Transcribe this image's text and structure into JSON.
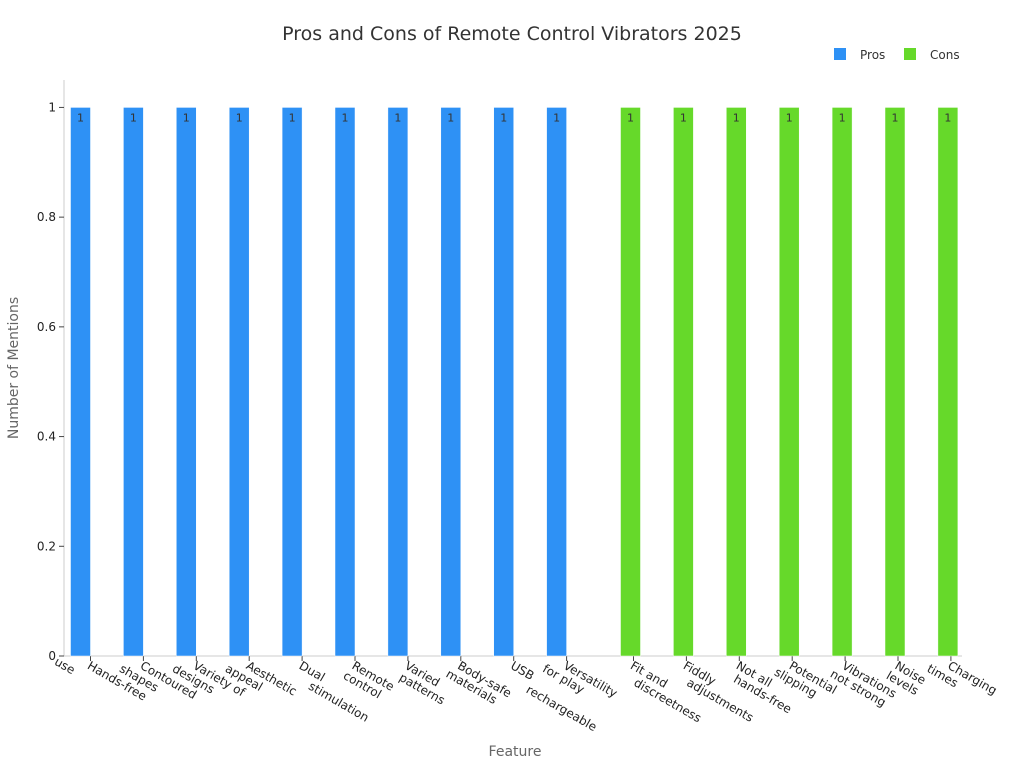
{
  "chart_data": {
    "type": "bar",
    "title": "Pros and Cons of Remote Control Vibrators 2025",
    "xlabel": "Feature",
    "ylabel": "Number of Mentions",
    "ylim": [
      0,
      1.05
    ],
    "yticks": [
      "0",
      "0.2",
      "0.4",
      "0.6",
      "0.8",
      "1"
    ],
    "grid": false,
    "legend_position": "top-right",
    "categories": [
      [
        "Hands-free",
        "use"
      ],
      [
        "Contoured",
        "shapes"
      ],
      [
        "Variety of",
        "designs"
      ],
      [
        "Aesthetic",
        "appeal"
      ],
      [
        "Dual",
        "stimulation"
      ],
      [
        "Remote",
        "control"
      ],
      [
        "Varied",
        "patterns"
      ],
      [
        "Body-safe",
        "materials"
      ],
      [
        "USB",
        "rechargeable"
      ],
      [
        "Versatility",
        "for play"
      ],
      [
        "Fit and",
        "discreetness"
      ],
      [
        "Fiddly",
        "adjustments"
      ],
      [
        "Not all",
        "hands-free"
      ],
      [
        "Potential",
        "slipping"
      ],
      [
        "Vibrations",
        "not strong"
      ],
      [
        "Noise",
        "levels"
      ],
      [
        "Charging",
        "times"
      ]
    ],
    "series": [
      {
        "name": "Pros",
        "color": "#2e91f5",
        "values": [
          1,
          1,
          1,
          1,
          1,
          1,
          1,
          1,
          1,
          1,
          null,
          null,
          null,
          null,
          null,
          null,
          null
        ]
      },
      {
        "name": "Cons",
        "color": "#66d92a",
        "values": [
          null,
          null,
          null,
          null,
          null,
          null,
          null,
          null,
          null,
          null,
          1,
          1,
          1,
          1,
          1,
          1,
          1
        ]
      }
    ]
  }
}
